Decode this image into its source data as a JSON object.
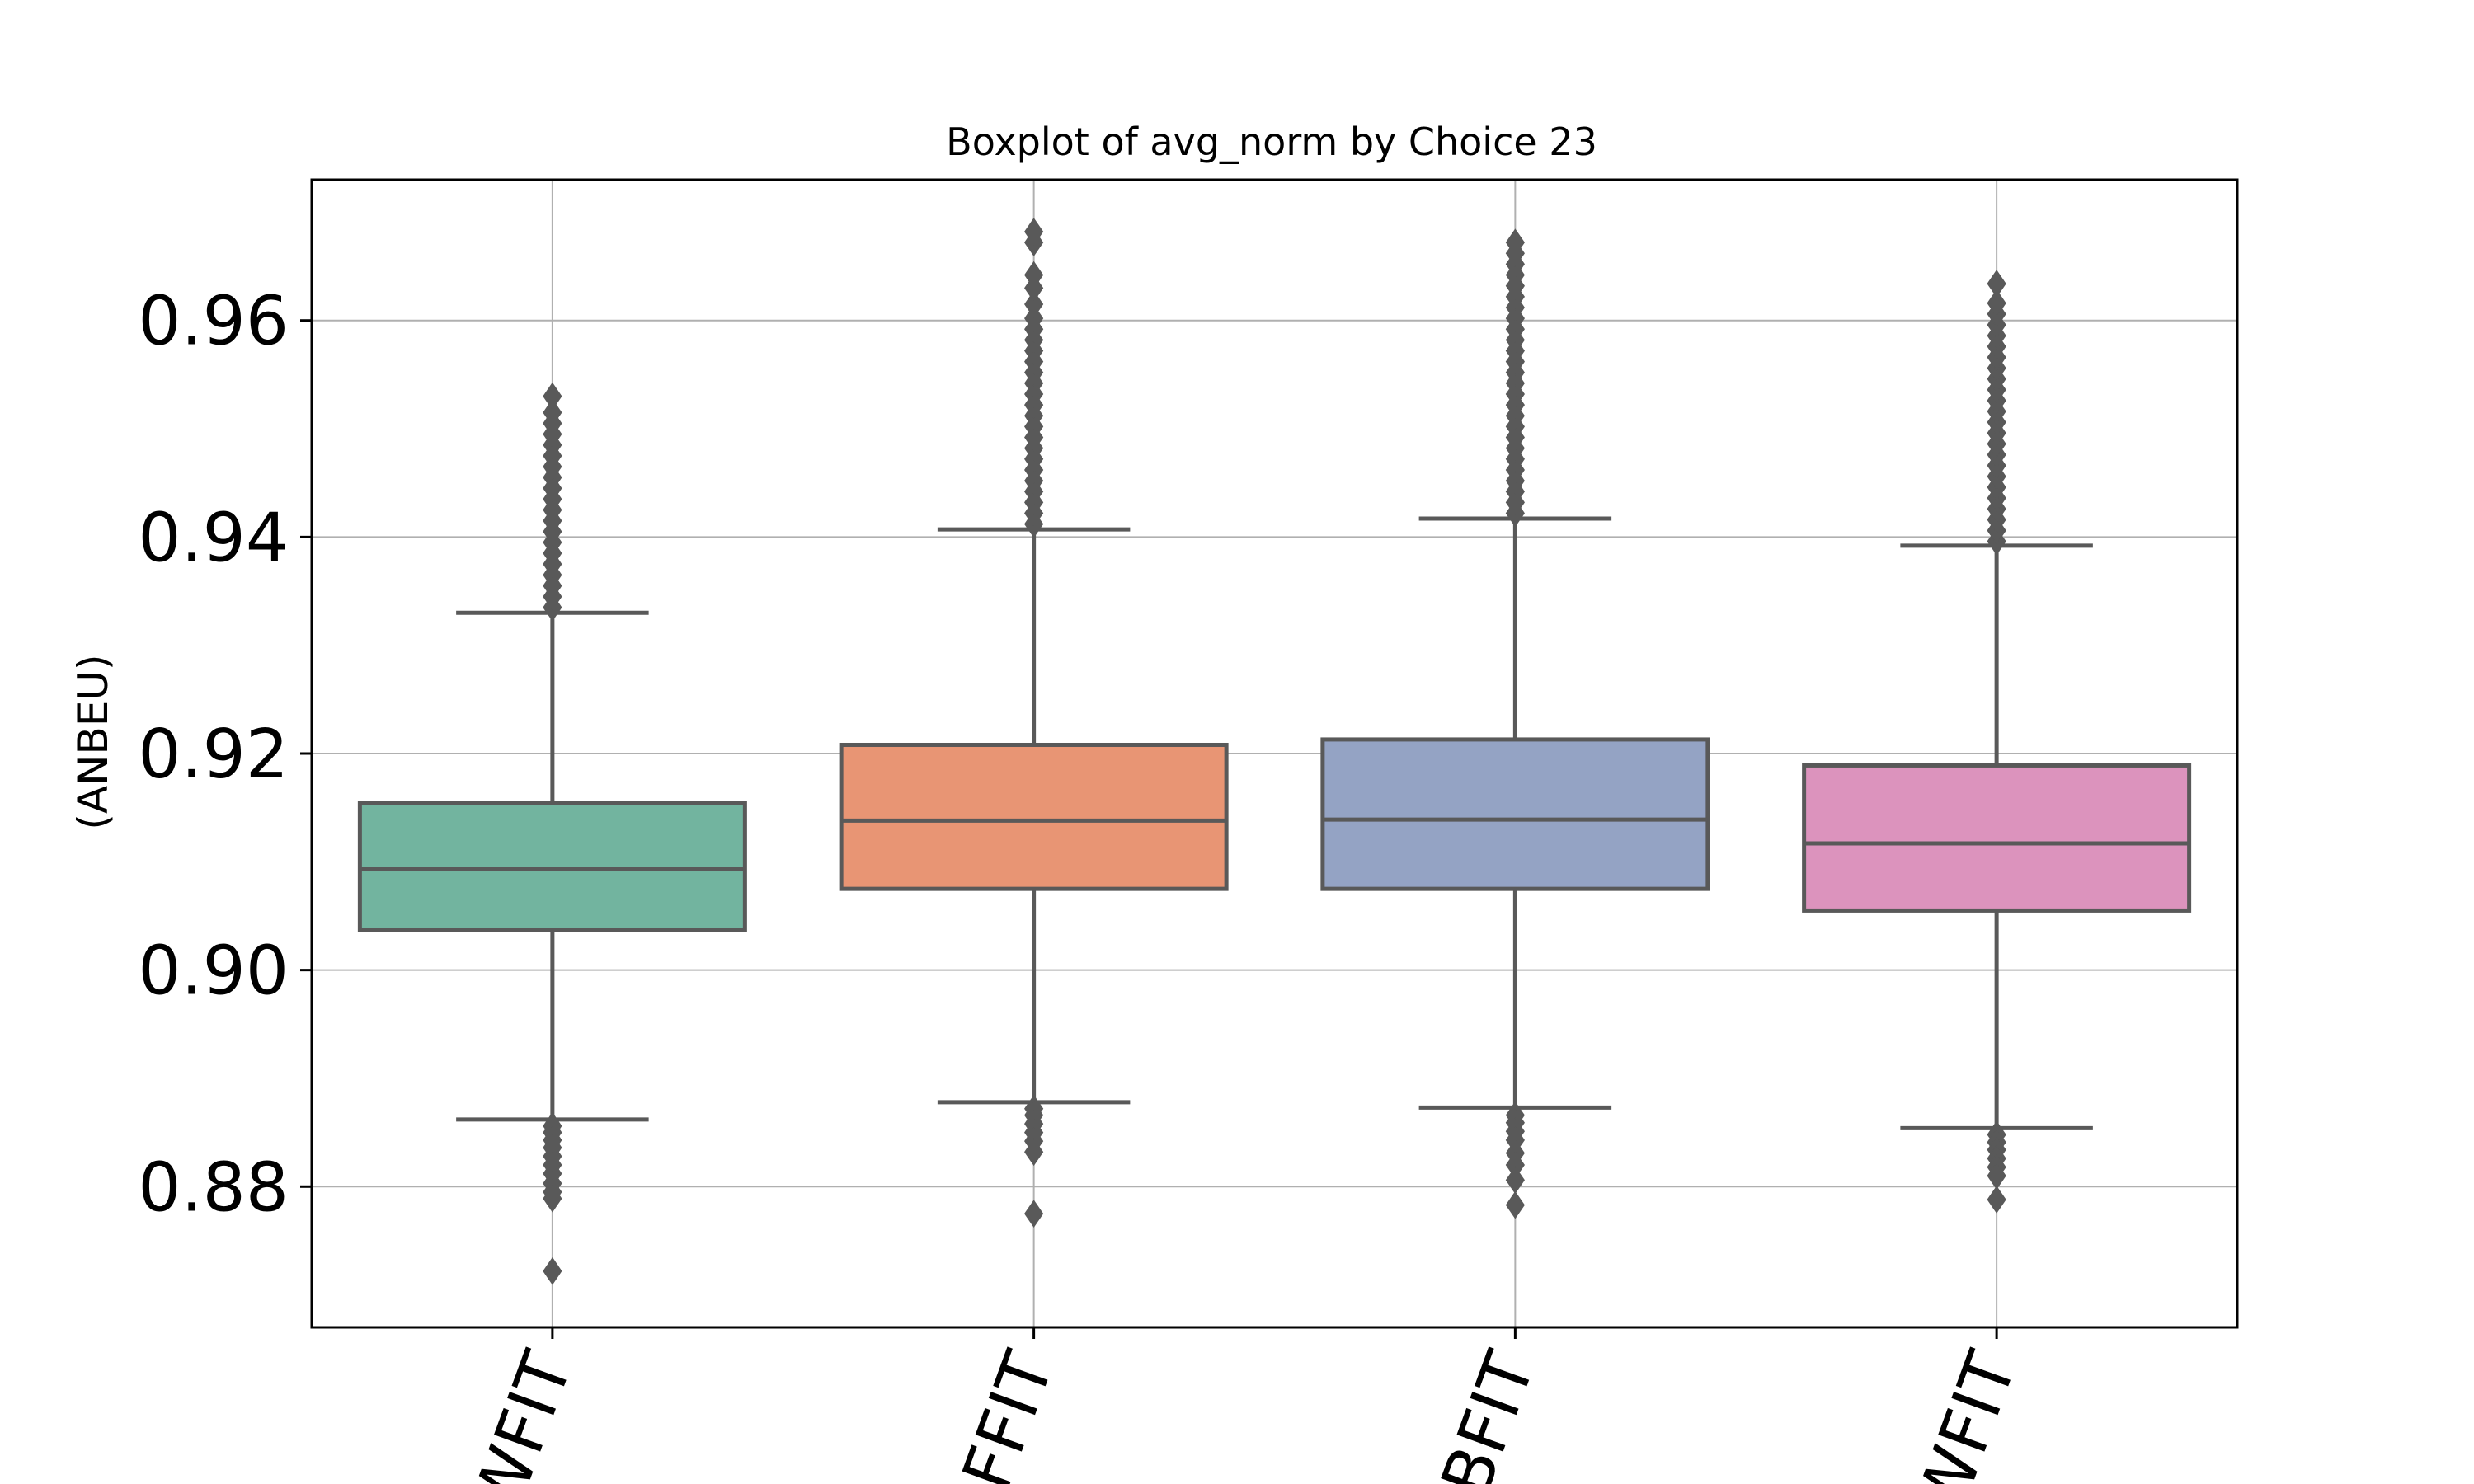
{
  "chart_data": {
    "type": "box",
    "title": "Boxplot of avg_norm by Choice 23",
    "xlabel": "",
    "ylabel": "(ANBEU)",
    "ylim": [
      0.867,
      0.973
    ],
    "yticks": [
      "0.88",
      "0.90",
      "0.92",
      "0.94",
      "0.96"
    ],
    "ytick_values": [
      0.88,
      0.9,
      0.92,
      0.94,
      0.96
    ],
    "grid": true,
    "categories": [
      "WFIT",
      "FFIT",
      "BFIT",
      "WFIT"
    ],
    "colors": [
      "#72b49f",
      "#e89574",
      "#94a3c4",
      "#dc93bd"
    ],
    "boxes": [
      {
        "label": "WFIT",
        "q1": 0.9037,
        "median": 0.9093,
        "q3": 0.9154,
        "whisker_low": 0.8862,
        "whisker_high": 0.933,
        "outliers_low": [
          0.8856,
          0.885,
          0.8843,
          0.8836,
          0.8828,
          0.882,
          0.8812,
          0.8803,
          0.8795,
          0.8789,
          0.8722
        ],
        "outliers_high": [
          0.9335,
          0.9345,
          0.9355,
          0.9365,
          0.9375,
          0.9385,
          0.9395,
          0.9405,
          0.9415,
          0.9425,
          0.9435,
          0.9445,
          0.9455,
          0.9465,
          0.9475,
          0.9485,
          0.9495,
          0.9505,
          0.9515,
          0.953
        ]
      },
      {
        "label": "FFIT",
        "q1": 0.9075,
        "median": 0.9138,
        "q3": 0.9208,
        "whisker_low": 0.8878,
        "whisker_high": 0.9407,
        "outliers_low": [
          0.8872,
          0.8866,
          0.8858,
          0.885,
          0.8842,
          0.8832,
          0.8775
        ],
        "outliers_high": [
          0.9412,
          0.9422,
          0.9432,
          0.9442,
          0.9452,
          0.9462,
          0.9472,
          0.9482,
          0.9492,
          0.9502,
          0.9512,
          0.9522,
          0.9532,
          0.9542,
          0.9552,
          0.9562,
          0.9572,
          0.9582,
          0.9592,
          0.9602,
          0.9615,
          0.963,
          0.9642,
          0.9672,
          0.9682
        ]
      },
      {
        "label": "BFIT",
        "q1": 0.9075,
        "median": 0.9139,
        "q3": 0.9213,
        "whisker_low": 0.8873,
        "whisker_high": 0.9417,
        "outliers_low": [
          0.8866,
          0.8859,
          0.8851,
          0.8843,
          0.8831,
          0.882,
          0.8806,
          0.8783
        ],
        "outliers_high": [
          0.9422,
          0.9432,
          0.9442,
          0.9452,
          0.9462,
          0.9472,
          0.9482,
          0.9492,
          0.9502,
          0.9512,
          0.9522,
          0.9532,
          0.9542,
          0.9552,
          0.9562,
          0.9572,
          0.9582,
          0.9592,
          0.9602,
          0.9612,
          0.9622,
          0.9632,
          0.9642,
          0.9652,
          0.9662,
          0.9672
        ]
      },
      {
        "label": "WFIT",
        "q1": 0.9055,
        "median": 0.9117,
        "q3": 0.9189,
        "whisker_low": 0.8854,
        "whisker_high": 0.9392,
        "outliers_low": [
          0.8848,
          0.8841,
          0.8834,
          0.8826,
          0.8818,
          0.881,
          0.8788
        ],
        "outliers_high": [
          0.9396,
          0.9406,
          0.9416,
          0.9426,
          0.9436,
          0.9446,
          0.9456,
          0.9466,
          0.9476,
          0.9486,
          0.9496,
          0.9506,
          0.9516,
          0.9526,
          0.9536,
          0.9546,
          0.9556,
          0.9566,
          0.9576,
          0.9586,
          0.9596,
          0.9606,
          0.9616,
          0.9634
        ]
      }
    ]
  }
}
